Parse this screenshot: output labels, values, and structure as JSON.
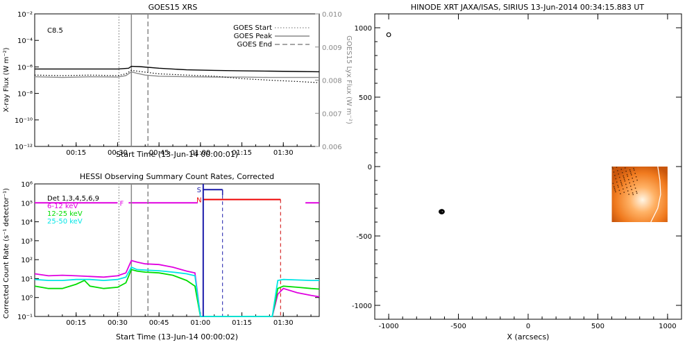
{
  "chart_data": [
    {
      "type": "line",
      "title": "GOES15 XRS",
      "xlabel": "Start Time (13-Jun-14 00:00:01)",
      "ylabel": "X-ray Flux (W m⁻²)",
      "y2label": "GOES15 Lyx Flux (W m⁻²)",
      "x_ticks": [
        "00:15",
        "00:30",
        "00:45",
        "01:00",
        "01:15",
        "01:30"
      ],
      "x_tick_minutes": [
        15,
        30,
        45,
        60,
        75,
        90
      ],
      "xlim_minutes": [
        0,
        103
      ],
      "yscale": "log",
      "ylim": [
        1e-12,
        0.01
      ],
      "y_ticks": [
        "10⁻¹²",
        "10⁻¹⁰",
        "10⁻⁸",
        "10⁻⁶",
        "10⁻⁴",
        "10⁻²"
      ],
      "y_tick_values": [
        1e-12,
        1e-10,
        1e-08,
        1e-06,
        0.0001,
        0.01
      ],
      "y2lim": [
        0.006,
        0.01
      ],
      "y2_ticks": [
        "0.006",
        "0.007",
        "0.008",
        "0.009",
        "0.010"
      ],
      "y2_tick_values": [
        0.006,
        0.007,
        0.008,
        0.009,
        0.01
      ],
      "annotation": "C8.5",
      "legend": [
        {
          "label": "GOES Start",
          "style": "dotted",
          "color": "#888888"
        },
        {
          "label": "GOES Peak",
          "style": "solid",
          "color": "#888888"
        },
        {
          "label": "GOES End",
          "style": "dashed",
          "color": "#888888"
        }
      ],
      "legend_position": "top-right",
      "vlines_minutes": {
        "start": 30.5,
        "peak": 35,
        "end": 41
      },
      "series": [
        {
          "color": "#000000",
          "style": "solid",
          "x": [
            0,
            10,
            20,
            30,
            34,
            35,
            38,
            45,
            55,
            65,
            75,
            85,
            95,
            103
          ],
          "y": [
            7e-07,
            7e-07,
            7e-07,
            7e-07,
            8e-07,
            1.1e-06,
            1.05e-06,
            8e-07,
            6e-07,
            5.5e-07,
            5e-07,
            4.8e-07,
            4.5e-07,
            4.3e-07
          ]
        },
        {
          "color": "#888888",
          "style": "solid",
          "x": [
            0,
            10,
            20,
            30,
            33,
            35,
            37,
            40,
            45,
            55,
            65,
            75,
            85,
            95,
            103
          ],
          "y": [
            1.8e-07,
            1.6e-07,
            1.8e-07,
            1.7e-07,
            2.2e-07,
            4.2e-07,
            3.3e-07,
            2.4e-07,
            2e-07,
            1.8e-07,
            1.7e-07,
            1.7e-07,
            1.6e-07,
            1.6e-07,
            1.6e-07
          ]
        },
        {
          "color": "#000000",
          "style": "dotted",
          "x": [
            0,
            10,
            20,
            30,
            33,
            35,
            38,
            45,
            55,
            65,
            75,
            85,
            95,
            103
          ],
          "y": [
            2.4e-07,
            2.2e-07,
            2.4e-07,
            2.2e-07,
            3e-07,
            5.5e-07,
            4.5e-07,
            3e-07,
            2.4e-07,
            2e-07,
            1.3e-07,
            1e-07,
            8e-08,
            6.5e-08
          ]
        }
      ]
    },
    {
      "type": "line",
      "title": "HESSI Observing Summary Count Rates, Corrected",
      "xlabel": "Start Time (13-Jun-14 00:00:02)",
      "ylabel": "Corrected Count Rate (s⁻¹ detector⁻¹)",
      "x_ticks": [
        "00:15",
        "00:30",
        "00:45",
        "01:00",
        "01:15",
        "01:30"
      ],
      "x_tick_minutes": [
        15,
        30,
        45,
        60,
        75,
        90
      ],
      "xlim_minutes": [
        0,
        103
      ],
      "yscale": "log",
      "ylim": [
        0.1,
        1000000.0
      ],
      "y_ticks": [
        "10⁻¹",
        "10⁰",
        "10¹",
        "10²",
        "10³",
        "10⁴",
        "10⁵",
        "10⁶"
      ],
      "y_tick_values": [
        0.1,
        1,
        10,
        100,
        1000,
        10000,
        100000,
        1000000
      ],
      "legend_title": "Det 1,3,4,5,6,9",
      "legend": [
        {
          "label": "6-12 keV",
          "color": "#e000e0"
        },
        {
          "label": "12-25 keV",
          "color": "#00dd00"
        },
        {
          "label": "25-50 keV",
          "color": "#00e6e6"
        }
      ],
      "legend_position": "top-left",
      "flag_labels": [
        "F",
        "S",
        "N"
      ],
      "vlines_minutes": {
        "start": 30.5,
        "peak": 35,
        "end": 41,
        "saa_end": 68,
        "night_end": 89
      },
      "flags": {
        "F_level_y": 100000,
        "F_ranges": [
          [
            0,
            30
          ],
          [
            34,
            59
          ],
          [
            98,
            103
          ]
        ],
        "S_level_y": 500000,
        "S_range": [
          61,
          68
        ],
        "N_level_y": 150000,
        "N_range": [
          61,
          89
        ]
      },
      "series": [
        {
          "name": "6-12 keV",
          "color": "#e000e0",
          "x": [
            0,
            5,
            10,
            15,
            20,
            25,
            30,
            33,
            35,
            37,
            40,
            45,
            50,
            55,
            58,
            60,
            62,
            64,
            86,
            88,
            90,
            95,
            100,
            103
          ],
          "y": [
            18,
            14,
            15,
            14,
            13,
            12,
            14,
            20,
            90,
            75,
            60,
            55,
            40,
            25,
            20,
            0.1,
            0.1,
            0.1,
            0.1,
            1.5,
            3,
            1.8,
            1.3,
            1.1
          ]
        },
        {
          "name": "12-25 keV",
          "color": "#00dd00",
          "x": [
            0,
            5,
            10,
            15,
            18,
            20,
            25,
            30,
            33,
            35,
            37,
            40,
            45,
            50,
            55,
            58,
            60,
            62,
            64,
            86,
            88,
            90,
            95,
            100,
            103
          ],
          "y": [
            4,
            3,
            3,
            5,
            8,
            4,
            3,
            3.5,
            6,
            30,
            25,
            22,
            20,
            15,
            8,
            4,
            0.1,
            0.1,
            0.1,
            0.1,
            3,
            4,
            3.5,
            3,
            2.8
          ]
        },
        {
          "name": "25-50 keV",
          "color": "#00e6e6",
          "x": [
            0,
            5,
            10,
            15,
            20,
            25,
            30,
            33,
            35,
            37,
            40,
            45,
            50,
            55,
            58,
            60,
            62,
            64,
            86,
            88,
            90,
            95,
            100,
            103
          ],
          "y": [
            9,
            8,
            8,
            9,
            9,
            8,
            9,
            12,
            40,
            30,
            28,
            26,
            22,
            18,
            14,
            0.1,
            0.1,
            0.1,
            0.1,
            8,
            9,
            8.5,
            8,
            8
          ]
        }
      ]
    },
    {
      "type": "scatter",
      "title": "HINODE XRT JAXA/ISAS, SIRIUS 13-Jun-2014 00:34:15.883 UT",
      "xlabel": "X (arcsecs)",
      "ylabel": "",
      "xlim": [
        -1100,
        1100
      ],
      "ylim": [
        -1100,
        1100
      ],
      "x_ticks": [
        "-1000",
        "-500",
        "0",
        "500",
        "1000"
      ],
      "x_tick_values": [
        -1000,
        -500,
        0,
        500,
        1000
      ],
      "y_ticks": [
        "-1000",
        "-500",
        "0",
        "500",
        "1000"
      ],
      "y_tick_values": [
        -1000,
        -500,
        0,
        500,
        1000
      ],
      "image_inset_arcsec": {
        "x0": 600,
        "x1": 1000,
        "y0": -400,
        "y1": 0
      },
      "limb_arc_arcsec": [
        [
          930,
          0
        ],
        [
          945,
          -100
        ],
        [
          950,
          -200
        ],
        [
          930,
          -300
        ],
        [
          880,
          -400
        ]
      ],
      "small_circle_arcsec": {
        "x": -1000,
        "y": 950,
        "r": 14
      },
      "contour_center_arcsec": {
        "x": -620,
        "y": -325
      },
      "contour_radii_arcsec": [
        [
          38,
          32
        ],
        [
          30,
          25
        ],
        [
          22,
          18
        ],
        [
          14,
          11
        ]
      ]
    }
  ]
}
